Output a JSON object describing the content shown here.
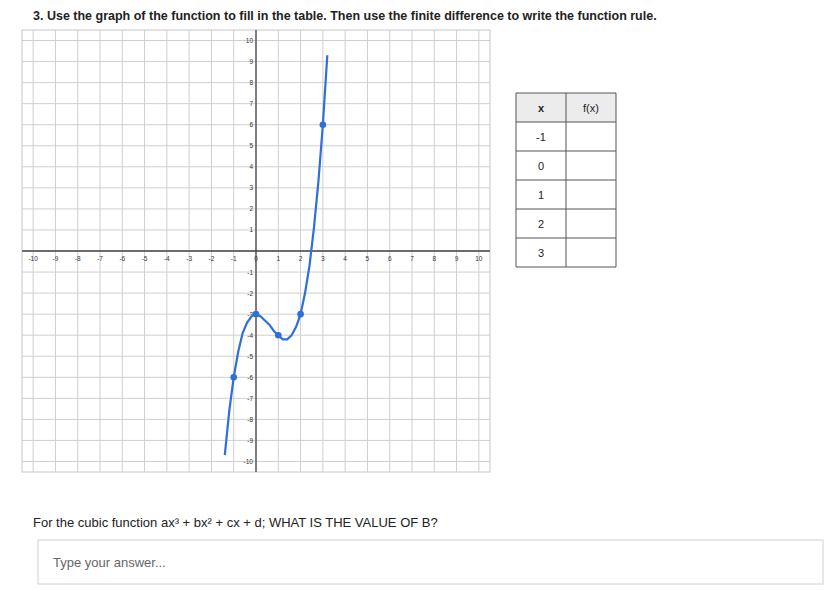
{
  "heading": "3. Use the graph of the function to fill in the table. Then use the finite difference to write the function rule.",
  "chart_data": {
    "type": "line",
    "xlim": [
      -10.5,
      10.5
    ],
    "ylim": [
      -10.5,
      10.5
    ],
    "xticks": [
      -10,
      -9,
      -8,
      -7,
      -6,
      -5,
      -4,
      -3,
      -2,
      -1,
      0,
      1,
      2,
      3,
      4,
      5,
      6,
      7,
      8,
      9,
      10
    ],
    "yticks": [
      -10,
      -9,
      -8,
      -7,
      -6,
      -5,
      -4,
      -3,
      -2,
      -1,
      0,
      1,
      2,
      3,
      4,
      5,
      6,
      7,
      8,
      9,
      10
    ],
    "grid": true,
    "series": [
      {
        "type": "line",
        "color": "#2f6fd8",
        "marker": "none",
        "line_style": "solid",
        "x": [
          -1.4,
          -1.2,
          -1,
          -0.8,
          -0.6,
          -0.4,
          -0.2,
          0,
          0.2,
          0.4,
          0.6,
          0.8,
          1,
          1.2,
          1.4,
          1.6,
          1.8,
          2,
          2.2,
          2.4,
          2.6,
          2.8,
          3,
          3.2
        ],
        "values": [
          -9.7,
          -7.6,
          -6,
          -4.8,
          -3.9,
          -3.4,
          -3.1,
          -3,
          -3.1,
          -3.3,
          -3.5,
          -3.8,
          -4,
          -4.2,
          -4.2,
          -4.0,
          -3.6,
          -3,
          -2.0,
          -0.7,
          1.1,
          3.3,
          6,
          9.3
        ]
      },
      {
        "type": "scatter",
        "color": "#2f6fd8",
        "marker": "circle",
        "x": [
          -1,
          0,
          1,
          2,
          3
        ],
        "values": [
          -6,
          -3,
          -4,
          -3,
          6
        ]
      }
    ]
  },
  "table": {
    "header": [
      "x",
      "f(x)"
    ],
    "rows": [
      -1,
      0,
      1,
      2,
      3
    ]
  },
  "question": "For the cubic function ax³ + bx² + cx + d; WHAT IS THE VALUE OF B?",
  "answer_placeholder": "Type your answer..."
}
